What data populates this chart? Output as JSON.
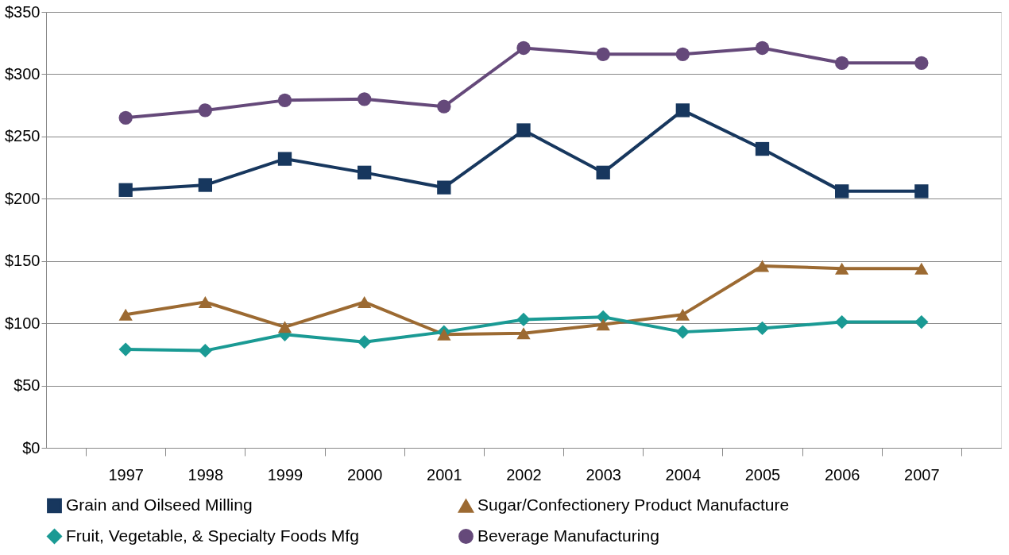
{
  "chart_data": {
    "type": "line",
    "categories": [
      "1997",
      "1998",
      "1999",
      "2000",
      "2001",
      "2002",
      "2003",
      "2004",
      "2005",
      "2006",
      "2007"
    ],
    "series": [
      {
        "name": "Grain and Oilseed Milling",
        "color": "#17375e",
        "marker": "square",
        "values": [
          207,
          211,
          232,
          221,
          209,
          255,
          221,
          271,
          240,
          206,
          206
        ]
      },
      {
        "name": "Sugar/Confectionery Product Manufacture",
        "color": "#9c6a32",
        "marker": "triangle",
        "values": [
          107,
          117,
          97,
          117,
          91,
          92,
          99,
          107,
          146,
          144,
          144
        ]
      },
      {
        "name": "Fruit, Vegetable, & Specialty Foods Mfg",
        "color": "#1a9a94",
        "marker": "diamond",
        "values": [
          79,
          78,
          91,
          85,
          93,
          103,
          105,
          93,
          96,
          101,
          101
        ]
      },
      {
        "name": "Beverage Manufacturing",
        "color": "#65497a",
        "marker": "circle",
        "values": [
          265,
          271,
          279,
          280,
          274,
          321,
          316,
          316,
          321,
          309,
          309
        ]
      }
    ],
    "ylim": [
      0,
      350
    ],
    "yticks": [
      {
        "value": 0,
        "label": "$0"
      },
      {
        "value": 50,
        "label": "$50"
      },
      {
        "value": 100,
        "label": "$100"
      },
      {
        "value": 150,
        "label": "$150"
      },
      {
        "value": 200,
        "label": "$200"
      },
      {
        "value": 250,
        "label": "$250"
      },
      {
        "value": 300,
        "label": "$300"
      },
      {
        "value": 350,
        "label": "$350"
      }
    ],
    "grid": "y",
    "legend": "bottom",
    "line_style": "solid"
  }
}
